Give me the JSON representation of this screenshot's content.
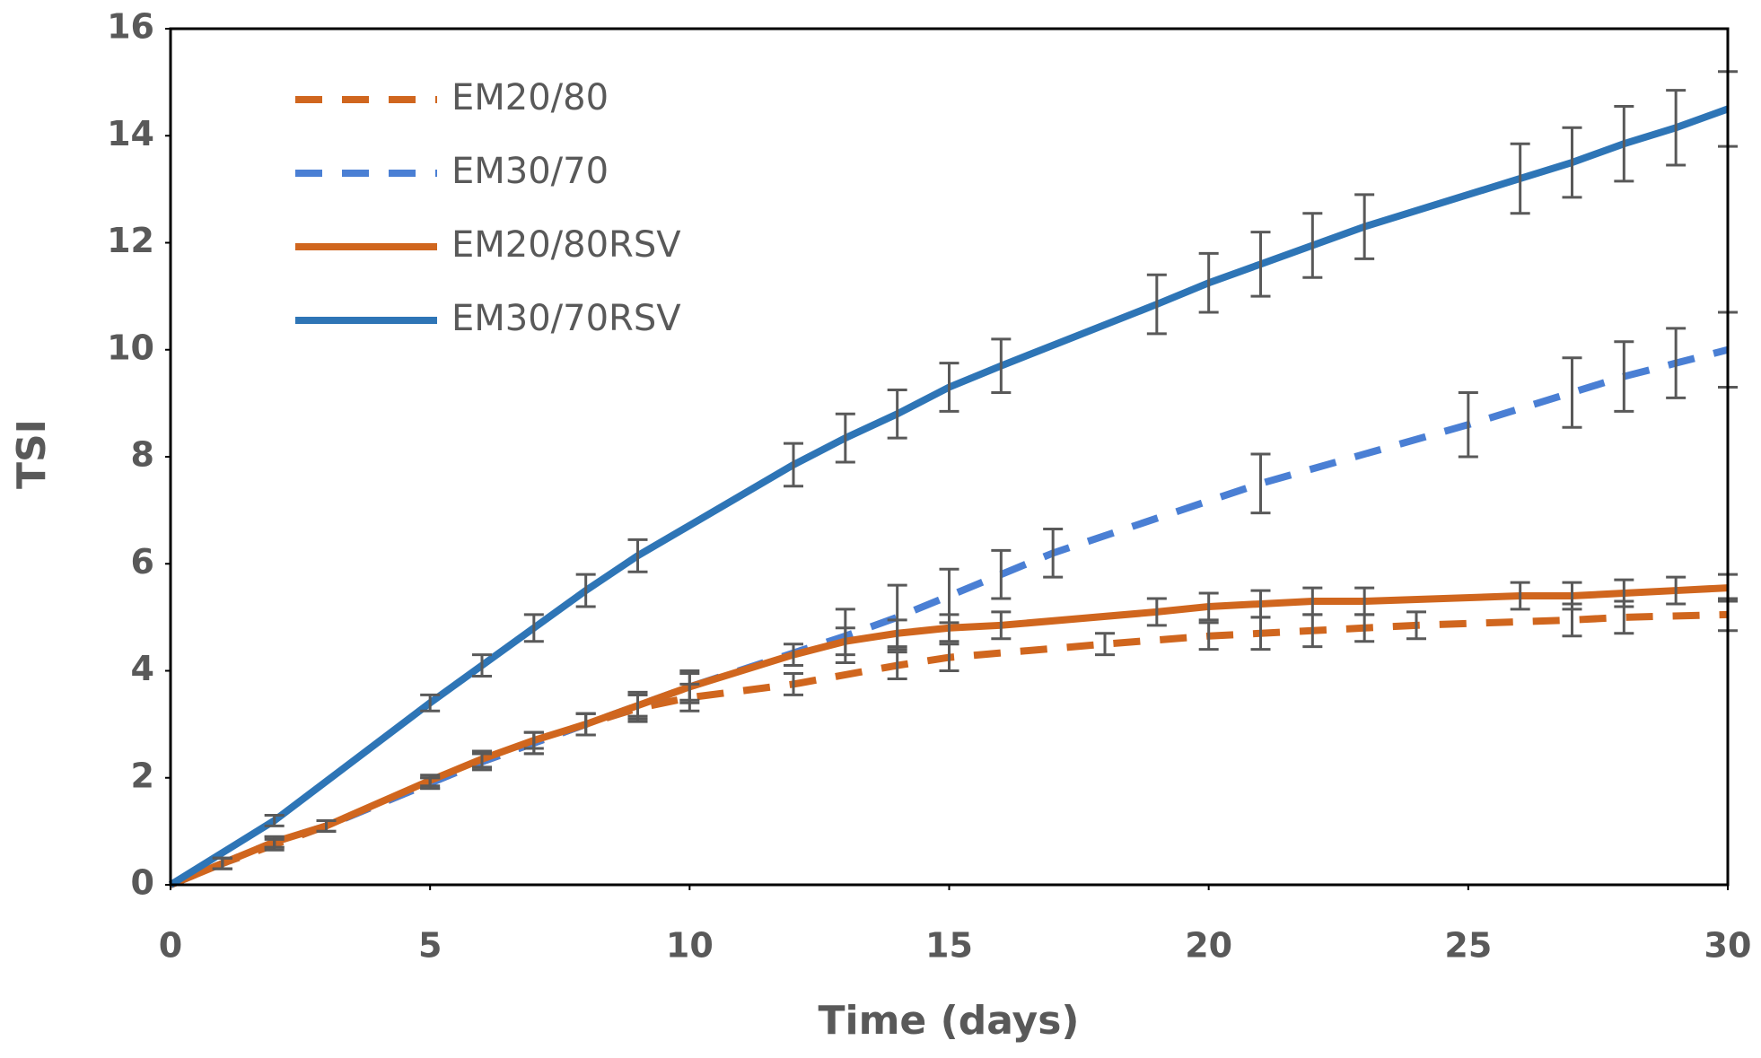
{
  "chart_data": {
    "type": "line",
    "xlabel": "Time (days)",
    "ylabel": "TSI",
    "xlim": [
      0,
      30
    ],
    "xticks": [
      0,
      5,
      10,
      15,
      20,
      25,
      30
    ],
    "ylim": [
      0,
      16
    ],
    "yticks": [
      0,
      2,
      4,
      6,
      8,
      10,
      12,
      14,
      16
    ],
    "grid": false,
    "legend": "upper left",
    "series": [
      {
        "name": "EM20/80",
        "color": "#d0661e",
        "line_style": "dashed",
        "x": [
          0,
          1,
          2,
          3,
          5,
          6,
          7,
          8,
          9,
          10,
          12,
          14,
          15,
          18,
          20,
          21,
          22,
          23,
          24,
          27,
          28,
          30
        ],
        "values": [
          0,
          0.4,
          0.75,
          1.1,
          1.9,
          2.3,
          2.65,
          3.0,
          3.3,
          3.5,
          3.75,
          4.1,
          4.25,
          4.5,
          4.65,
          4.7,
          4.75,
          4.8,
          4.85,
          4.95,
          5.0,
          5.05
        ],
        "errors": [
          null,
          0.1,
          0.1,
          0.1,
          0.1,
          0.15,
          0.2,
          0.2,
          0.25,
          0.25,
          0.2,
          0.25,
          0.25,
          0.2,
          0.25,
          0.3,
          0.3,
          0.25,
          0.25,
          0.3,
          0.3,
          0.3
        ]
      },
      {
        "name": "EM30/70",
        "color": "#4a7fd4",
        "line_style": "dashed",
        "x": [
          0,
          1,
          2,
          3,
          5,
          6,
          7,
          8,
          9,
          10,
          13,
          14,
          15,
          16,
          17,
          21,
          25,
          27,
          28,
          29,
          30
        ],
        "values": [
          0,
          0.4,
          0.8,
          1.1,
          1.9,
          2.3,
          2.65,
          3.0,
          3.35,
          3.7,
          4.65,
          5.0,
          5.4,
          5.8,
          6.2,
          7.5,
          8.6,
          9.2,
          9.5,
          9.75,
          10.0
        ],
        "errors": [
          null,
          0.1,
          0.1,
          0.1,
          0.1,
          0.15,
          0.2,
          0.2,
          0.25,
          0.3,
          0.5,
          0.6,
          0.5,
          0.45,
          0.45,
          0.55,
          0.6,
          0.65,
          0.65,
          0.65,
          0.7
        ]
      },
      {
        "name": "EM20/80RSV",
        "color": "#d0661e",
        "line_style": "solid",
        "x": [
          0,
          1,
          2,
          3,
          5,
          6,
          7,
          8,
          9,
          10,
          12,
          13,
          14,
          15,
          16,
          19,
          20,
          21,
          22,
          23,
          26,
          27,
          28,
          29,
          30
        ],
        "values": [
          0,
          0.4,
          0.8,
          1.1,
          1.95,
          2.35,
          2.7,
          3.0,
          3.35,
          3.7,
          4.3,
          4.55,
          4.7,
          4.8,
          4.85,
          5.1,
          5.2,
          5.25,
          5.3,
          5.3,
          5.4,
          5.4,
          5.45,
          5.5,
          5.55
        ],
        "errors": [
          null,
          0.1,
          0.1,
          0.1,
          0.1,
          0.15,
          0.15,
          0.2,
          0.2,
          0.25,
          0.2,
          0.25,
          0.25,
          0.25,
          0.25,
          0.25,
          0.25,
          0.25,
          0.25,
          0.25,
          0.25,
          0.25,
          0.25,
          0.25,
          0.25
        ]
      },
      {
        "name": "EM30/70RSV",
        "color": "#2e75b6",
        "line_style": "solid",
        "x": [
          0,
          2,
          5,
          6,
          7,
          8,
          9,
          12,
          13,
          14,
          15,
          16,
          19,
          20,
          21,
          22,
          23,
          26,
          27,
          28,
          29,
          30
        ],
        "values": [
          0,
          1.2,
          3.4,
          4.1,
          4.8,
          5.5,
          6.15,
          7.85,
          8.35,
          8.8,
          9.3,
          9.7,
          10.85,
          11.25,
          11.6,
          11.95,
          12.3,
          13.2,
          13.5,
          13.85,
          14.15,
          14.5
        ],
        "errors": [
          null,
          0.1,
          0.15,
          0.2,
          0.25,
          0.3,
          0.3,
          0.4,
          0.45,
          0.45,
          0.45,
          0.5,
          0.55,
          0.55,
          0.6,
          0.6,
          0.6,
          0.65,
          0.65,
          0.7,
          0.7,
          0.7
        ]
      }
    ]
  }
}
